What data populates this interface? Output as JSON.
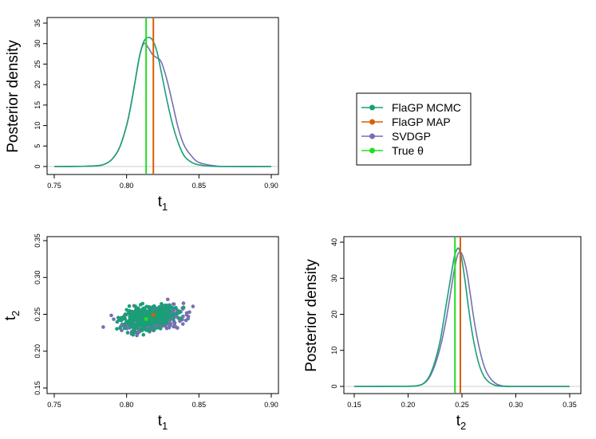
{
  "colors": {
    "flagp_mcmc": "#1b9e77",
    "flagp_map": "#d95f02",
    "svdgp": "#7570b3",
    "true_theta": "#22dd22"
  },
  "legend": {
    "items": [
      {
        "label": "FlaGP MCMC",
        "color": "#1b9e77"
      },
      {
        "label": "FlaGP MAP",
        "color": "#d95f02"
      },
      {
        "label": "SVDGP",
        "color": "#7570b3"
      },
      {
        "label": "True θ",
        "color": "#22dd22"
      }
    ]
  },
  "chart_data": [
    {
      "id": "t1-density",
      "type": "line",
      "xlabel": "t1",
      "ylabel": "Posterior density",
      "xlim": [
        0.75,
        0.9
      ],
      "ylim": [
        0,
        35
      ],
      "xticks": [
        "0.75",
        "0.80",
        "0.85",
        "0.90"
      ],
      "yticks": [
        "0",
        "5",
        "10",
        "15",
        "20",
        "25",
        "30",
        "35"
      ],
      "series": [
        {
          "name": "FlaGP MCMC",
          "x": [
            0.75,
            0.77,
            0.78,
            0.785,
            0.79,
            0.795,
            0.8,
            0.803,
            0.806,
            0.809,
            0.812,
            0.815,
            0.818,
            0.821,
            0.824,
            0.828,
            0.832,
            0.836,
            0.84,
            0.845,
            0.85,
            0.86,
            0.87,
            0.9
          ],
          "y": [
            0,
            0.05,
            0.2,
            0.6,
            1.8,
            4.5,
            10,
            15,
            21,
            27,
            30.6,
            31.5,
            30.8,
            28,
            23,
            16,
            10,
            5.5,
            2.5,
            1,
            0.4,
            0.05,
            0,
            0
          ]
        },
        {
          "name": "SVDGP",
          "x": [
            0.75,
            0.77,
            0.78,
            0.785,
            0.79,
            0.795,
            0.8,
            0.803,
            0.806,
            0.809,
            0.812,
            0.815,
            0.818,
            0.821,
            0.824,
            0.828,
            0.832,
            0.836,
            0.84,
            0.845,
            0.85,
            0.86,
            0.87,
            0.9
          ],
          "y": [
            0,
            0.05,
            0.2,
            0.6,
            1.8,
            4.5,
            10,
            15,
            21,
            27,
            30,
            29,
            27.3,
            26.5,
            25.5,
            21,
            15,
            9,
            5,
            2.5,
            1,
            0.2,
            0,
            0
          ]
        }
      ],
      "vlines": [
        {
          "name": "True θ",
          "x": 0.8135
        },
        {
          "name": "FlaGP MAP",
          "x": 0.8185
        }
      ]
    },
    {
      "id": "t1-t2-scatter",
      "type": "scatter",
      "xlabel": "t1",
      "ylabel": "t2",
      "xlim": [
        0.75,
        0.9
      ],
      "ylim": [
        0.15,
        0.35
      ],
      "xticks": [
        "0.75",
        "0.80",
        "0.85",
        "0.90"
      ],
      "yticks": [
        "0.15",
        "0.20",
        "0.25",
        "0.30",
        "0.35"
      ],
      "series": [
        {
          "name": "SVDGP",
          "center": [
            0.818,
            0.2435
          ],
          "sd": [
            0.0105,
            0.0085
          ],
          "count": 340
        },
        {
          "name": "FlaGP MCMC",
          "center": [
            0.8145,
            0.2455
          ],
          "sd": [
            0.0085,
            0.0072
          ],
          "count": 420
        }
      ],
      "points": [
        {
          "name": "FlaGP MAP",
          "x": 0.8185,
          "y": 0.249
        },
        {
          "name": "True θ",
          "x": 0.8135,
          "y": 0.2435
        }
      ]
    },
    {
      "id": "t2-density",
      "type": "line",
      "xlabel": "t2",
      "ylabel": "Posterior density",
      "xlim": [
        0.15,
        0.35
      ],
      "ylim": [
        0,
        40
      ],
      "xticks": [
        "0.15",
        "0.20",
        "0.25",
        "0.30",
        "0.35"
      ],
      "yticks": [
        "0",
        "10",
        "20",
        "30",
        "40"
      ],
      "series": [
        {
          "name": "FlaGP MCMC",
          "x": [
            0.15,
            0.2,
            0.21,
            0.215,
            0.22,
            0.225,
            0.23,
            0.235,
            0.24,
            0.243,
            0.246,
            0.248,
            0.25,
            0.253,
            0.256,
            0.26,
            0.265,
            0.27,
            0.275,
            0.28,
            0.285,
            0.29,
            0.3,
            0.35
          ],
          "y": [
            0,
            0.05,
            0.3,
            1,
            3,
            7,
            13,
            22,
            31,
            36,
            38.3,
            37.6,
            35,
            29,
            22,
            14,
            7,
            3,
            1.2,
            0.4,
            0.1,
            0,
            0,
            0
          ]
        },
        {
          "name": "SVDGP",
          "x": [
            0.15,
            0.2,
            0.21,
            0.215,
            0.22,
            0.225,
            0.23,
            0.235,
            0.24,
            0.243,
            0.246,
            0.249,
            0.252,
            0.255,
            0.258,
            0.262,
            0.267,
            0.272,
            0.277,
            0.282,
            0.287,
            0.292,
            0.3,
            0.35
          ],
          "y": [
            0,
            0.05,
            0.3,
            0.9,
            2.6,
            6,
            11,
            18,
            27,
            32.5,
            36.5,
            37.2,
            35,
            31,
            25,
            17,
            9.5,
            4.5,
            2,
            0.7,
            0.2,
            0.05,
            0,
            0
          ]
        }
      ],
      "vlines": [
        {
          "name": "True θ",
          "x": 0.2435
        },
        {
          "name": "FlaGP MAP",
          "x": 0.2485
        }
      ]
    }
  ]
}
